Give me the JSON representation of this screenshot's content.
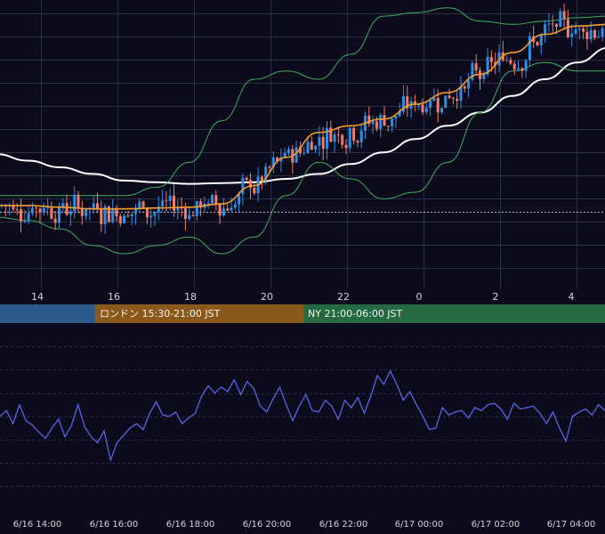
{
  "chart_data": [
    {
      "type": "candlestick",
      "x_axis": {
        "labels": [
          "14",
          "16",
          "18",
          "20",
          "22",
          "0",
          "2",
          "4"
        ]
      },
      "colors": {
        "background": "#0b0b1c",
        "up_candle": "#2e8de6",
        "down_candle": "#f07d67",
        "moving_average": "#f39c30",
        "long_moving_average": "#ffffff",
        "bollinger_bands": "#3fae5e",
        "grid": "#2b2c44"
      },
      "grid": true,
      "reference_line": "dotted horizontal line",
      "series": [
        {
          "type": "candlestick",
          "trend": "flat, dip near 16, rally 18-23, pullback near 0, range after 1"
        },
        {
          "type": "moving_average",
          "values": [
            0.4,
            0.4,
            0.3,
            0.2,
            0.2,
            0.25,
            0.3,
            0.5,
            1.6,
            3.3,
            4.8,
            5.2,
            5.6,
            6.5,
            7.2,
            8.3,
            9.6,
            10.7,
            11.2,
            11.3
          ]
        },
        {
          "type": "long_moving_average",
          "values": [
            3.5,
            3.1,
            2.7,
            2.3,
            1.9,
            1.8,
            1.7,
            1.75,
            1.8,
            2.0,
            2.3,
            2.9,
            3.6,
            4.4,
            5.2,
            6.0,
            7.0,
            8.0,
            9.0,
            9.9
          ]
        },
        {
          "type": "bollinger_upper",
          "values": [
            1.0,
            1.0,
            1.0,
            1.0,
            1.0,
            1.5,
            3.0,
            5.5,
            8.0,
            8.5,
            8.0,
            9.5,
            11.8,
            12.0,
            12.3,
            11.5,
            11.3,
            11.5,
            11.7,
            11.8
          ]
        },
        {
          "type": "bollinger_lower",
          "values": [
            -0.3,
            -0.5,
            -1.0,
            -2.0,
            -2.5,
            -2.0,
            -1.5,
            -2.5,
            -1.5,
            1.0,
            3.0,
            2.0,
            0.8,
            1.2,
            3.0,
            6.0,
            8.5,
            9.0,
            8.5,
            8.5
          ]
        }
      ]
    },
    {
      "type": "line",
      "x_axis": {
        "labels": [
          "6/16 14:00",
          "6/16 16:00",
          "6/16 18:00",
          "6/16 20:00",
          "6/16 22:00",
          "6/17 00:00",
          "6/17 02:00",
          "6/17 04:00"
        ]
      },
      "colors": {
        "line": "#5a63e6",
        "grid": "#2b2c44"
      },
      "grid": true,
      "series": [
        {
          "values": [
            60,
            64,
            55,
            68,
            57,
            54,
            49,
            45,
            52,
            58,
            46,
            54,
            68,
            53,
            46,
            42,
            50,
            30,
            42,
            47,
            52,
            55,
            51,
            62,
            70,
            61,
            60,
            63,
            55,
            59,
            62,
            74,
            81,
            76,
            80,
            77,
            85,
            75,
            84,
            79,
            67,
            63,
            72,
            80,
            68,
            57,
            67,
            75,
            64,
            63,
            71,
            67,
            58,
            71,
            66,
            73,
            62,
            74,
            88,
            82,
            91,
            82,
            71,
            77,
            68,
            60,
            51,
            52,
            66,
            61,
            63,
            64,
            59,
            66,
            64,
            68,
            69,
            65,
            58,
            69,
            65,
            66,
            67,
            62,
            55,
            63,
            52,
            43,
            60,
            63,
            65,
            61,
            68,
            64
          ]
        }
      ]
    }
  ],
  "sessions": [
    {
      "label": "",
      "color": "#2b5a8a"
    },
    {
      "label": "ロンドン 15:30-21:00 JST",
      "color": "#8b5a1a"
    },
    {
      "label": "NY 21:00-06:00 JST",
      "color": "#256a40"
    }
  ]
}
